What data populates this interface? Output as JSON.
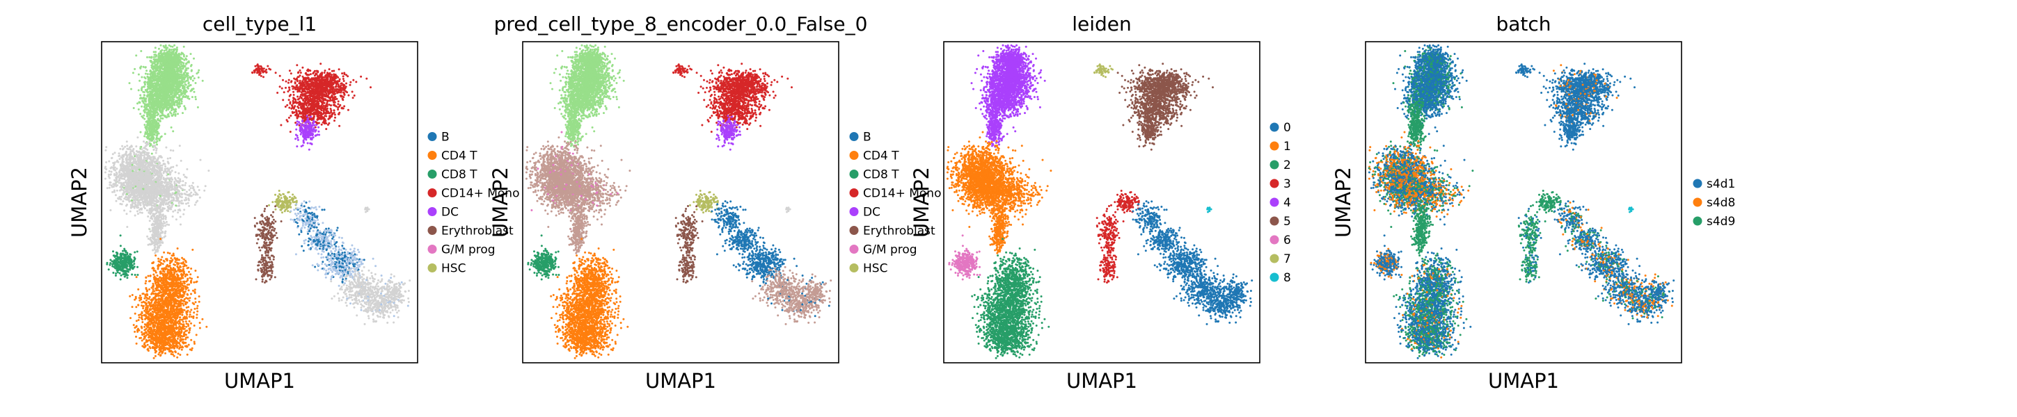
{
  "figure": {
    "type": "umap_scatter_grid"
  },
  "chart_data": [
    {
      "type": "scatter",
      "title": "cell_type_l1",
      "xlabel": "UMAP1",
      "ylabel": "UMAP2",
      "grid": false,
      "legend_placement": "right",
      "legend": [
        {
          "label": "B",
          "color": "#1f77b4"
        },
        {
          "label": "CD4 T",
          "color": "#ff7f0e"
        },
        {
          "label": "CD8 T",
          "color": "#279e68"
        },
        {
          "label": "CD14+ Mono",
          "color": "#d62728"
        },
        {
          "label": "DC",
          "color": "#aa40fc"
        },
        {
          "label": "Erythroblast",
          "color": "#8c564b"
        },
        {
          "label": "G/M prog",
          "color": "#e377c2"
        },
        {
          "label": "HSC",
          "color": "#b5bd61"
        }
      ]
    },
    {
      "type": "scatter",
      "title": "pred_cell_type_8_encoder_0.0_False_0",
      "xlabel": "UMAP1",
      "ylabel": "UMAP2",
      "grid": false,
      "legend_placement": "right",
      "legend": [
        {
          "label": "B",
          "color": "#1f77b4"
        },
        {
          "label": "CD4 T",
          "color": "#ff7f0e"
        },
        {
          "label": "CD8 T",
          "color": "#279e68"
        },
        {
          "label": "CD14+ Mono",
          "color": "#d62728"
        },
        {
          "label": "DC",
          "color": "#aa40fc"
        },
        {
          "label": "Erythroblast",
          "color": "#8c564b"
        },
        {
          "label": "G/M prog",
          "color": "#e377c2"
        },
        {
          "label": "HSC",
          "color": "#b5bd61"
        }
      ]
    },
    {
      "type": "scatter",
      "title": "leiden",
      "xlabel": "UMAP1",
      "ylabel": "UMAP2",
      "grid": false,
      "legend_placement": "right",
      "legend": [
        {
          "label": "0",
          "color": "#1f77b4"
        },
        {
          "label": "1",
          "color": "#ff7f0e"
        },
        {
          "label": "2",
          "color": "#279e68"
        },
        {
          "label": "3",
          "color": "#d62728"
        },
        {
          "label": "4",
          "color": "#aa40fc"
        },
        {
          "label": "5",
          "color": "#8c564b"
        },
        {
          "label": "6",
          "color": "#e377c2"
        },
        {
          "label": "7",
          "color": "#b5bd61"
        },
        {
          "label": "8",
          "color": "#17becf"
        }
      ]
    },
    {
      "type": "scatter",
      "title": "batch",
      "xlabel": "UMAP1",
      "ylabel": "UMAP2",
      "grid": false,
      "legend_placement": "right",
      "legend": [
        {
          "label": "s4d1",
          "color": "#1f77b4"
        },
        {
          "label": "s4d8",
          "color": "#ff7f0e"
        },
        {
          "label": "s4d9",
          "color": "#279e68"
        }
      ]
    }
  ]
}
